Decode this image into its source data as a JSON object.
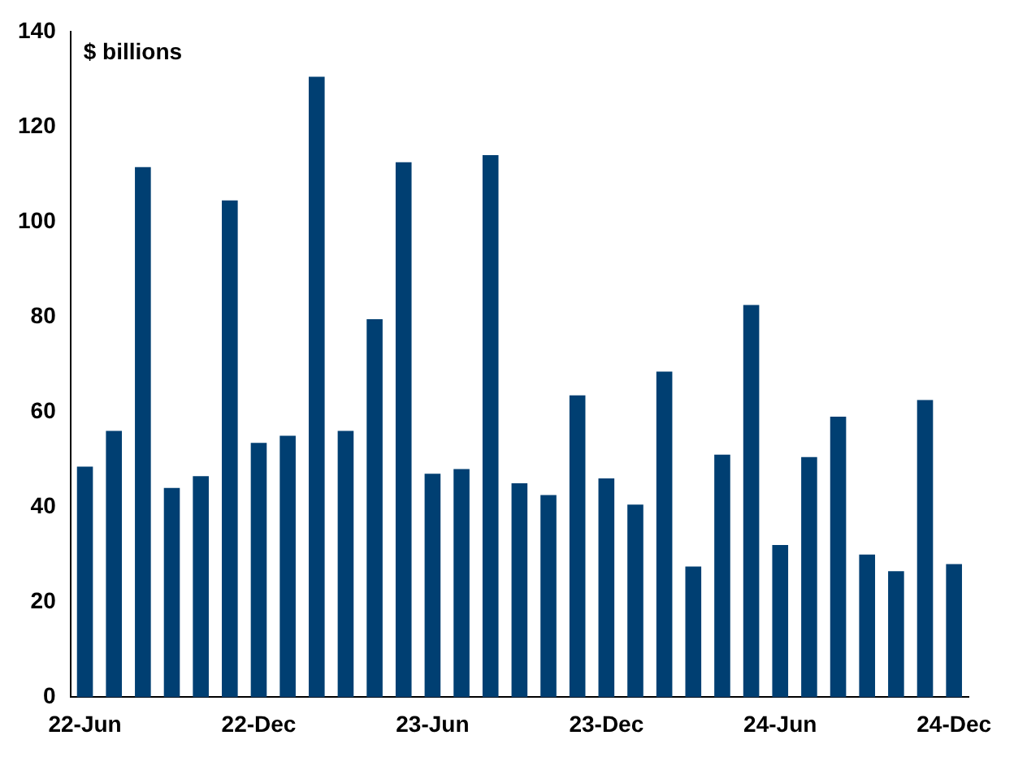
{
  "chart_data": {
    "type": "bar",
    "annotations": [
      "$ billions"
    ],
    "categories": [
      "22-Jun",
      null,
      null,
      null,
      null,
      null,
      "22-Dec",
      null,
      null,
      null,
      null,
      null,
      "23-Jun",
      null,
      null,
      null,
      null,
      null,
      "23-Dec",
      null,
      null,
      null,
      null,
      null,
      "24-Jun",
      null,
      null,
      null,
      null,
      null,
      "24-Dec"
    ],
    "values": [
      48.5,
      56,
      111.5,
      44,
      46.5,
      104.5,
      53.5,
      55,
      130.5,
      56,
      79.5,
      112.5,
      47,
      48,
      114,
      45,
      42.5,
      63.5,
      46,
      40.5,
      68.5,
      27.5,
      51,
      82.5,
      32,
      50.5,
      59,
      30,
      26.5,
      62.5,
      28
    ],
    "color": "#003f72",
    "ylim": [
      0,
      140
    ],
    "yticks": [
      0,
      20,
      40,
      60,
      80,
      100,
      120,
      140
    ],
    "grid": false,
    "legend": false
  }
}
